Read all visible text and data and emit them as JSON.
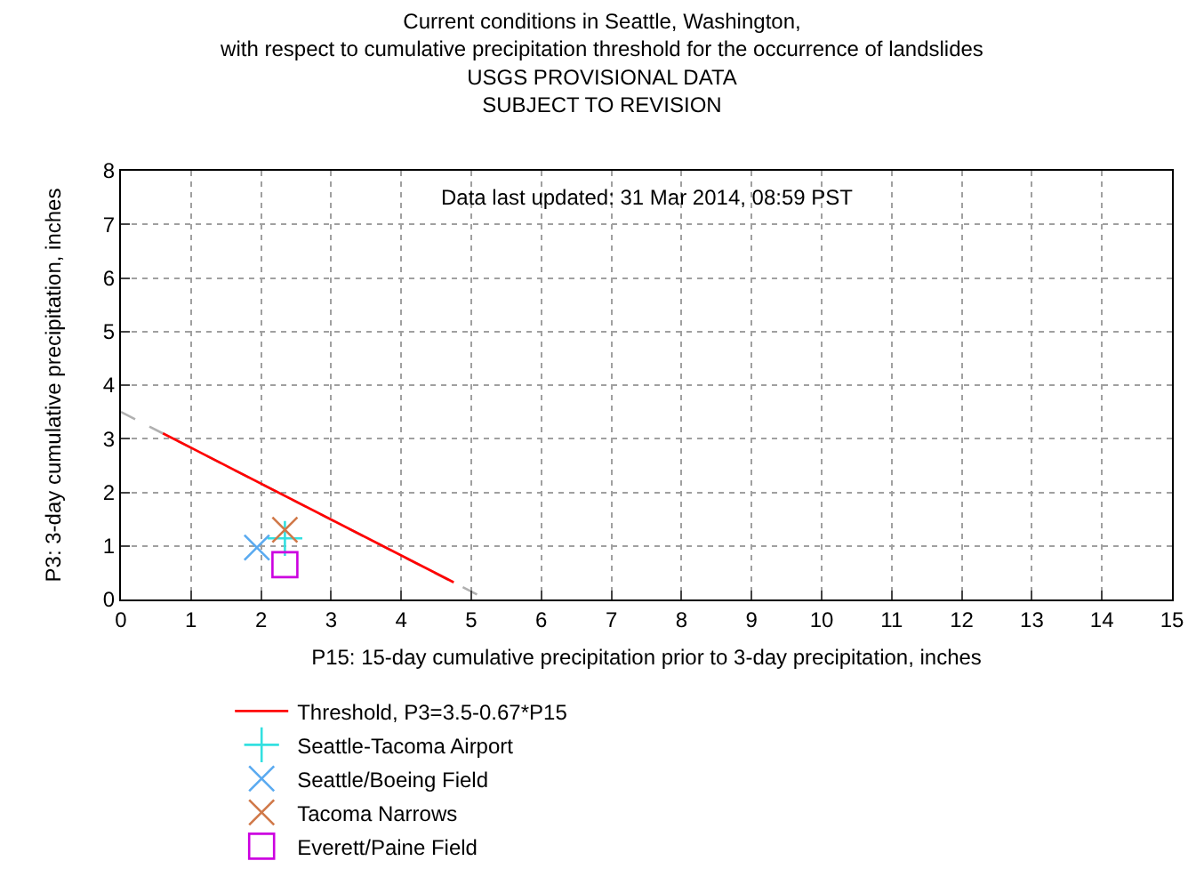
{
  "chart_data": {
    "type": "scatter",
    "title": "Current conditions in Seattle, Washington,\nwith respect to cumulative precipitation threshold for the occurrence of landslides\nUSGS PROVISIONAL DATA\nSUBJECT TO REVISION",
    "xlabel": "P15: 15-day cumulative precipitation prior to 3-day precipitation, inches",
    "ylabel": "P3: 3-day cumulative precipitation, inches",
    "annotations": [
      "Data last updated: 31 Mar 2014, 08:59 PST"
    ],
    "xlim": [
      0,
      15
    ],
    "xticks": [
      0,
      1,
      2,
      3,
      4,
      5,
      6,
      7,
      8,
      9,
      10,
      11,
      12,
      13,
      14,
      15
    ],
    "ylim": [
      0,
      8
    ],
    "yticks": [
      0,
      1,
      2,
      3,
      4,
      5,
      6,
      7,
      8
    ],
    "grid": true,
    "legend": "bottom",
    "series": [
      {
        "type": "line",
        "color": "#b0b0b0",
        "line_style": "dashed",
        "marker": "none",
        "x": [
          0,
          5.22
        ],
        "values": [
          3.5,
          0
        ]
      },
      {
        "name": "Threshold, P3=3.5-0.67*P15",
        "type": "line",
        "color": "#ff0000",
        "line_style": "solid",
        "marker": "none",
        "x": [
          0.6,
          4.75
        ],
        "values": [
          3.1,
          0.32
        ]
      },
      {
        "name": "Seattle-Tacoma Airport",
        "type": "scatter",
        "color": "#33e0e0",
        "marker": "plus",
        "x": [
          2.34
        ],
        "values": [
          1.14
        ]
      },
      {
        "name": "Seattle/Boeing Field",
        "type": "scatter",
        "color": "#5aaaf0",
        "marker": "cross",
        "x": [
          1.94
        ],
        "values": [
          0.97
        ]
      },
      {
        "name": "Tacoma Narrows",
        "type": "scatter",
        "color": "#d07848",
        "marker": "cross",
        "x": [
          2.34
        ],
        "values": [
          1.3
        ]
      },
      {
        "name": "Everett/Paine Field",
        "type": "scatter",
        "color": "#cc00e0",
        "marker": "square",
        "x": [
          2.34
        ],
        "values": [
          0.65
        ]
      }
    ]
  }
}
